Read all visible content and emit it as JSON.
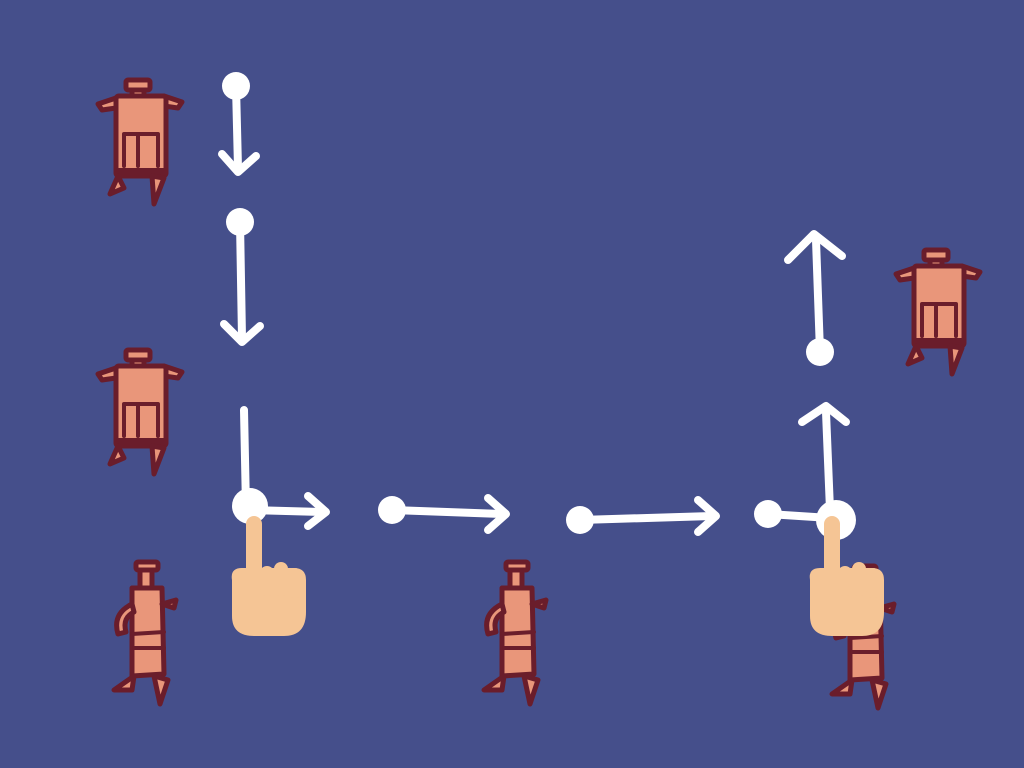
{
  "scene": {
    "background_color": "#454f8b",
    "path_color": "#ffffff",
    "character_skin_color": "#e9967a",
    "character_outline_color": "#6a1d2b",
    "hand_color": "#f5c595"
  },
  "icons": {
    "character_front": "character-front-icon",
    "character_side": "character-side-icon",
    "pointer_hand": "pointing-hand-icon",
    "arrow": "arrow-icon"
  }
}
